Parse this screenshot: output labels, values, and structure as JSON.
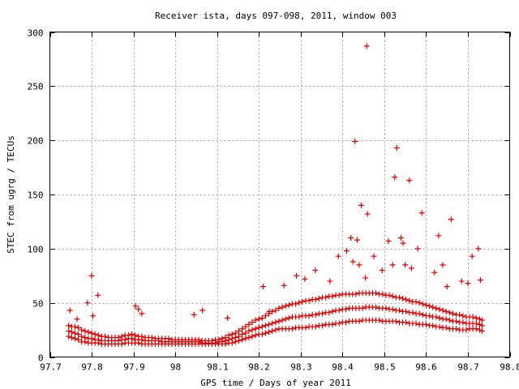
{
  "chart_data": {
    "type": "scatter",
    "title": "Receiver ista, days 097-098, 2011, window 003",
    "xlabel": "GPS time / Days of year 2011",
    "ylabel": "STEC from ugrg / TECUs",
    "xlim": [
      97.7,
      98.8
    ],
    "ylim": [
      0,
      300
    ],
    "xticks": [
      97.7,
      97.8,
      97.9,
      98.0,
      98.1,
      98.2,
      98.3,
      98.4,
      98.5,
      98.6,
      98.7,
      98.8
    ],
    "xtick_labels": [
      "97.7",
      "97.8",
      "97.9",
      "98",
      "98.1",
      "98.2",
      "98.3",
      "98.4",
      "98.5",
      "98.6",
      "98.7",
      "98.8"
    ],
    "yticks": [
      0,
      50,
      100,
      150,
      200,
      250,
      300
    ],
    "ytick_labels": [
      "0",
      "50",
      "100",
      "150",
      "200",
      "250",
      "300"
    ],
    "grid": true,
    "marker": "+",
    "color": "#dd0000",
    "series": [
      {
        "x": [
          97.745,
          97.752,
          97.76,
          97.768,
          97.776,
          97.784,
          97.792,
          97.8,
          97.808,
          97.816,
          97.824,
          97.832,
          97.84,
          97.848,
          97.856,
          97.864,
          97.872,
          97.88,
          97.888,
          97.896,
          97.904,
          97.912,
          97.92,
          97.928,
          97.936,
          97.944,
          97.952,
          97.96,
          97.968,
          97.976,
          97.984,
          97.992,
          98.0,
          98.008,
          98.016,
          98.024,
          98.032,
          98.04,
          98.048,
          98.056,
          98.064,
          98.072,
          98.08,
          98.088,
          98.096,
          98.104,
          98.112,
          98.12,
          98.128,
          98.136,
          98.144,
          98.152,
          98.16,
          98.168,
          98.176,
          98.184,
          98.192,
          98.2,
          98.208,
          98.216,
          98.224,
          98.232,
          98.24,
          98.248,
          98.256,
          98.264,
          98.272,
          98.28,
          98.288,
          98.296,
          98.304,
          98.312,
          98.32,
          98.328,
          98.336,
          98.344,
          98.352,
          98.36,
          98.368,
          98.376,
          98.384,
          98.392,
          98.4,
          98.408,
          98.416,
          98.424,
          98.432,
          98.44,
          98.448,
          98.456,
          98.464,
          98.472,
          98.48,
          98.488,
          98.496,
          98.504,
          98.512,
          98.52,
          98.528,
          98.536,
          98.544,
          98.552,
          98.56,
          98.568,
          98.576,
          98.584,
          98.592,
          98.6,
          98.608,
          98.616,
          98.624,
          98.632,
          98.64,
          98.648,
          98.656,
          98.664,
          98.672,
          98.68,
          98.688,
          98.696,
          98.704,
          98.712,
          98.72,
          98.728,
          98.734
        ],
        "y": [
          19,
          18,
          17,
          16,
          14,
          14,
          13,
          13,
          13,
          13,
          12,
          12,
          12,
          12,
          12,
          12,
          12,
          13,
          13,
          13,
          13,
          13,
          12,
          12,
          12,
          12,
          12,
          12,
          12,
          12,
          12,
          12,
          12,
          12,
          12,
          12,
          12,
          12,
          12,
          12,
          12,
          12,
          12,
          12,
          12,
          12,
          12,
          12,
          13,
          13,
          14,
          15,
          16,
          17,
          18,
          19,
          20,
          21,
          21,
          22,
          23,
          24,
          25,
          26,
          26,
          26,
          26,
          26,
          27,
          27,
          27,
          27,
          28,
          28,
          28,
          29,
          29,
          30,
          30,
          30,
          31,
          31,
          32,
          32,
          33,
          33,
          33,
          33,
          34,
          34,
          34,
          34,
          34,
          34,
          33,
          33,
          33,
          33,
          33,
          32,
          32,
          32,
          31,
          31,
          31,
          30,
          30,
          30,
          29,
          29,
          28,
          28,
          27,
          27,
          26,
          26,
          26,
          25,
          25,
          25,
          26,
          26,
          26,
          25,
          24
        ]
      },
      {
        "x": [
          97.745,
          97.752,
          97.76,
          97.768,
          97.776,
          97.784,
          97.792,
          97.8,
          97.808,
          97.816,
          97.824,
          97.832,
          97.84,
          97.848,
          97.856,
          97.864,
          97.872,
          97.88,
          97.888,
          97.896,
          97.904,
          97.912,
          97.92,
          97.928,
          97.936,
          97.944,
          97.952,
          97.96,
          97.968,
          97.976,
          97.984,
          97.992,
          98.0,
          98.008,
          98.016,
          98.024,
          98.032,
          98.04,
          98.048,
          98.056,
          98.064,
          98.072,
          98.08,
          98.088,
          98.096,
          98.104,
          98.112,
          98.12,
          98.128,
          98.136,
          98.144,
          98.152,
          98.16,
          98.168,
          98.176,
          98.184,
          98.192,
          98.2,
          98.208,
          98.216,
          98.224,
          98.232,
          98.24,
          98.248,
          98.256,
          98.264,
          98.272,
          98.28,
          98.288,
          98.296,
          98.304,
          98.312,
          98.32,
          98.328,
          98.336,
          98.344,
          98.352,
          98.36,
          98.368,
          98.376,
          98.384,
          98.392,
          98.4,
          98.408,
          98.416,
          98.424,
          98.432,
          98.44,
          98.448,
          98.456,
          98.464,
          98.472,
          98.48,
          98.488,
          98.496,
          98.504,
          98.512,
          98.52,
          98.528,
          98.536,
          98.544,
          98.552,
          98.56,
          98.568,
          98.576,
          98.584,
          98.592,
          98.6,
          98.608,
          98.616,
          98.624,
          98.632,
          98.64,
          98.648,
          98.656,
          98.664,
          98.672,
          98.68,
          98.688,
          98.696,
          98.704,
          98.712,
          98.72,
          98.728,
          98.734
        ],
        "y": [
          24,
          23,
          22,
          21,
          19,
          18,
          17,
          17,
          16,
          16,
          15,
          15,
          15,
          15,
          15,
          15,
          16,
          16,
          17,
          17,
          16,
          16,
          16,
          15,
          15,
          15,
          15,
          15,
          14,
          14,
          14,
          14,
          14,
          14,
          14,
          14,
          14,
          14,
          14,
          14,
          13,
          13,
          13,
          13,
          13,
          14,
          14,
          15,
          16,
          17,
          18,
          19,
          21,
          22,
          24,
          25,
          26,
          27,
          28,
          29,
          30,
          31,
          32,
          33,
          34,
          35,
          36,
          37,
          37,
          37,
          38,
          38,
          38,
          39,
          39,
          40,
          40,
          41,
          41,
          42,
          43,
          43,
          44,
          44,
          45,
          45,
          45,
          45,
          45,
          46,
          46,
          46,
          46,
          45,
          45,
          45,
          44,
          44,
          43,
          43,
          42,
          42,
          41,
          41,
          40,
          40,
          39,
          38,
          38,
          37,
          37,
          36,
          35,
          35,
          34,
          33,
          33,
          32,
          32,
          31,
          31,
          31,
          31,
          30,
          29
        ]
      },
      {
        "x": [
          97.745,
          97.752,
          97.76,
          97.768,
          97.776,
          97.784,
          97.792,
          97.8,
          97.808,
          97.816,
          97.824,
          97.832,
          97.84,
          97.848,
          97.856,
          97.864,
          97.872,
          97.88,
          97.888,
          97.896,
          97.904,
          97.912,
          97.92,
          97.928,
          97.936,
          97.944,
          97.952,
          97.96,
          97.968,
          97.976,
          97.984,
          97.992,
          98.0,
          98.008,
          98.016,
          98.024,
          98.032,
          98.04,
          98.048,
          98.056,
          98.064,
          98.072,
          98.08,
          98.088,
          98.096,
          98.104,
          98.112,
          98.12,
          98.128,
          98.136,
          98.144,
          98.152,
          98.16,
          98.168,
          98.176,
          98.184,
          98.192,
          98.2,
          98.208,
          98.216,
          98.224,
          98.232,
          98.24,
          98.248,
          98.256,
          98.264,
          98.272,
          98.28,
          98.288,
          98.296,
          98.304,
          98.312,
          98.32,
          98.328,
          98.336,
          98.344,
          98.352,
          98.36,
          98.368,
          98.376,
          98.384,
          98.392,
          98.4,
          98.408,
          98.416,
          98.424,
          98.432,
          98.44,
          98.448,
          98.456,
          98.464,
          98.472,
          98.48,
          98.488,
          98.496,
          98.504,
          98.512,
          98.52,
          98.528,
          98.536,
          98.544,
          98.552,
          98.56,
          98.568,
          98.576,
          98.584,
          98.592,
          98.6,
          98.608,
          98.616,
          98.624,
          98.632,
          98.64,
          98.648,
          98.656,
          98.664,
          98.672,
          98.68,
          98.688,
          98.696,
          98.704,
          98.712,
          98.72,
          98.728,
          98.734
        ],
        "y": [
          29,
          28,
          28,
          27,
          25,
          24,
          23,
          22,
          21,
          20,
          19,
          19,
          18,
          18,
          18,
          18,
          19,
          20,
          20,
          21,
          20,
          19,
          19,
          18,
          18,
          18,
          17,
          17,
          17,
          17,
          17,
          16,
          16,
          16,
          16,
          16,
          16,
          16,
          16,
          16,
          15,
          15,
          15,
          15,
          16,
          16,
          17,
          18,
          20,
          21,
          22,
          24,
          26,
          28,
          30,
          32,
          34,
          35,
          36,
          38,
          40,
          42,
          43,
          45,
          46,
          47,
          48,
          49,
          49,
          50,
          51,
          52,
          52,
          53,
          53,
          54,
          55,
          55,
          56,
          56,
          57,
          57,
          58,
          58,
          58,
          58,
          58,
          59,
          59,
          59,
          59,
          59,
          59,
          58,
          58,
          57,
          57,
          56,
          55,
          55,
          54,
          53,
          52,
          51,
          51,
          50,
          49,
          48,
          47,
          46,
          45,
          44,
          43,
          42,
          41,
          40,
          39,
          39,
          38,
          37,
          37,
          37,
          36,
          35,
          34
        ]
      },
      {
        "x": [
          97.748,
          97.765,
          97.79,
          97.8,
          97.803,
          97.815,
          97.905,
          97.912,
          97.92,
          98.045,
          98.065,
          98.125,
          98.21,
          98.225,
          98.26,
          98.29,
          98.31,
          98.335,
          98.37,
          98.39,
          98.41,
          98.42,
          98.425,
          98.43,
          98.435,
          98.44,
          98.445,
          98.455,
          98.458,
          98.46,
          98.475,
          98.495,
          98.51,
          98.52,
          98.525,
          98.53,
          98.54,
          98.545,
          98.55,
          98.56,
          98.565,
          98.58,
          98.59,
          98.62,
          98.63,
          98.64,
          98.65,
          98.66,
          98.685,
          98.7,
          98.71,
          98.725,
          98.73
        ],
        "y": [
          43,
          35,
          50,
          75,
          38,
          57,
          47,
          44,
          40,
          39,
          43,
          36,
          65,
          42,
          66,
          75,
          72,
          80,
          70,
          93,
          98,
          110,
          88,
          199,
          108,
          85,
          140,
          73,
          287,
          132,
          93,
          80,
          107,
          85,
          166,
          193,
          110,
          105,
          85,
          163,
          82,
          100,
          133,
          78,
          112,
          85,
          65,
          127,
          70,
          68,
          93,
          100,
          71
        ]
      }
    ]
  }
}
